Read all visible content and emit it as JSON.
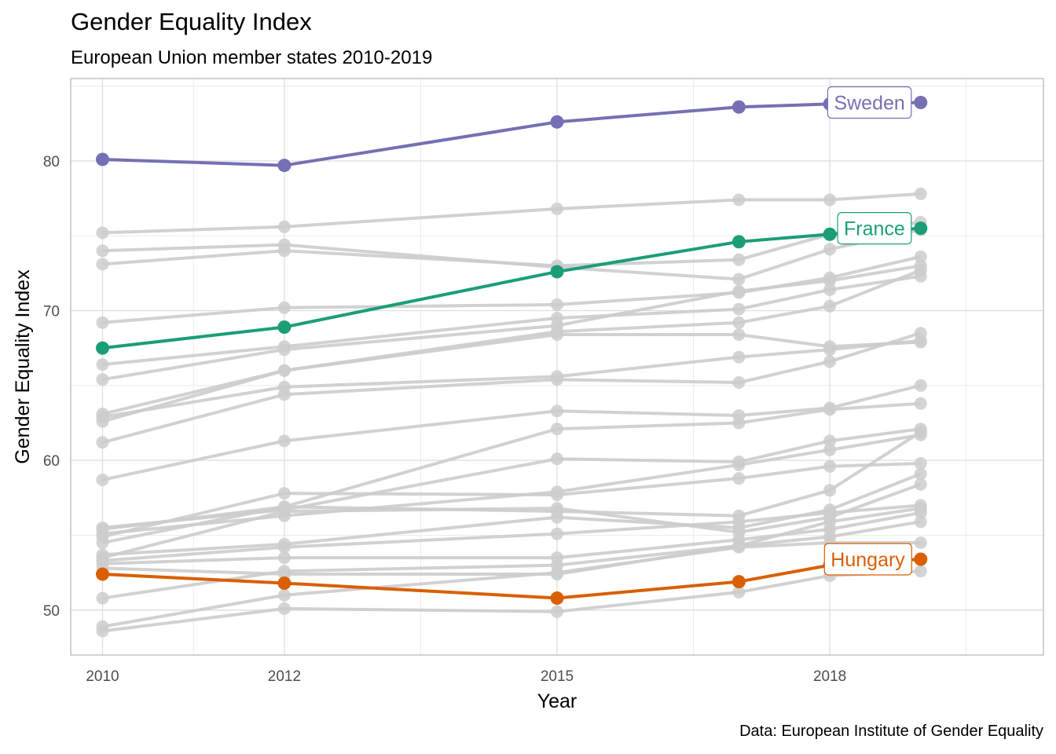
{
  "chart_data": {
    "type": "line",
    "title": "Gender Equality Index",
    "subtitle": "European Union member states 2010-2019",
    "caption": "Data: European Institute of Gender Equality",
    "xlabel": "Year",
    "ylabel": "Gender Equality Index",
    "x": [
      2010,
      2012,
      2015,
      2017,
      2018,
      2019
    ],
    "x_ticks": [
      2010,
      2012,
      2015,
      2018
    ],
    "y_ticks": [
      50,
      60,
      70,
      80
    ],
    "xlim": [
      2009.65,
      2020.35
    ],
    "ylim": [
      47,
      85.5
    ],
    "grid": true,
    "legend": "none",
    "highlight_series": [
      {
        "name": "Sweden",
        "color": "#7570b3",
        "values": [
          80.1,
          79.7,
          82.6,
          83.6,
          83.8,
          83.9
        ]
      },
      {
        "name": "France",
        "color": "#1b9e77",
        "values": [
          67.5,
          68.9,
          72.6,
          74.6,
          75.1,
          75.5
        ]
      },
      {
        "name": "Hungary",
        "color": "#d95f02",
        "values": [
          52.4,
          51.8,
          50.8,
          51.9,
          53.0,
          53.4
        ]
      }
    ],
    "background_color": "#cccccc",
    "background_series": [
      [
        75.2,
        75.6,
        76.8,
        77.4,
        77.4,
        77.8
      ],
      [
        74.0,
        74.4,
        72.9,
        72.1,
        74.1,
        75.4
      ],
      [
        73.1,
        74.0,
        73.0,
        73.4,
        75.1,
        75.9
      ],
      [
        69.2,
        70.2,
        70.4,
        71.2,
        72.2,
        73.6
      ],
      [
        66.4,
        67.6,
        69.5,
        70.1,
        71.4,
        72.3
      ],
      [
        65.4,
        67.4,
        69.0,
        71.3,
        72.0,
        73.0
      ],
      [
        63.1,
        66.0,
        68.6,
        69.2,
        70.3,
        72.7
      ],
      [
        62.6,
        66.0,
        68.4,
        68.4,
        67.6,
        67.9
      ],
      [
        62.9,
        64.9,
        65.6,
        66.9,
        67.4,
        68.0
      ],
      [
        61.2,
        64.4,
        65.4,
        65.2,
        66.6,
        68.5
      ],
      [
        58.7,
        61.3,
        63.3,
        63.0,
        63.5,
        65.0
      ],
      [
        55.4,
        56.9,
        62.1,
        62.5,
        63.4,
        63.8
      ],
      [
        55.5,
        56.7,
        60.1,
        59.9,
        61.3,
        62.1
      ],
      [
        55.1,
        56.3,
        57.9,
        59.7,
        60.7,
        61.7
      ],
      [
        54.9,
        57.8,
        57.7,
        58.8,
        59.6,
        59.8
      ],
      [
        54.5,
        56.9,
        56.6,
        56.3,
        58.0,
        61.9
      ],
      [
        53.7,
        54.4,
        56.2,
        55.5,
        56.7,
        59.1
      ],
      [
        53.5,
        56.6,
        56.8,
        55.2,
        56.2,
        58.4
      ],
      [
        53.3,
        54.2,
        55.1,
        55.9,
        56.5,
        57.0
      ],
      [
        53.1,
        53.5,
        53.5,
        54.7,
        55.4,
        56.5
      ],
      [
        52.8,
        52.4,
        52.4,
        54.3,
        55.9,
        56.8
      ],
      [
        50.8,
        52.6,
        53.0,
        54.3,
        54.9,
        55.9
      ],
      [
        48.9,
        51.0,
        52.5,
        54.2,
        54.5,
        54.5
      ],
      [
        48.6,
        50.1,
        49.9,
        51.2,
        52.3,
        52.6
      ]
    ]
  }
}
